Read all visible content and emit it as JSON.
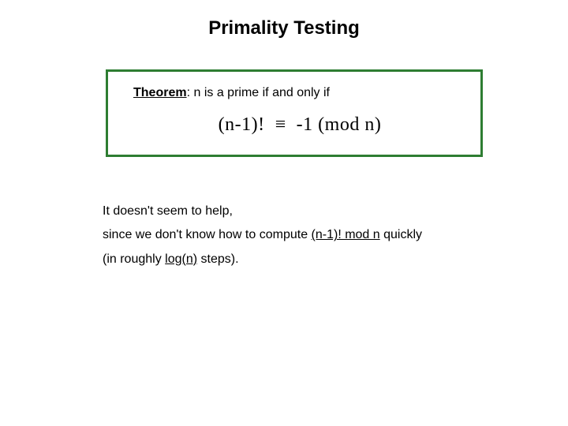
{
  "colors": {
    "text": "#000000",
    "box_border": "#2e7d32",
    "underline": "#000000",
    "background": "#ffffff"
  },
  "title": "Primality Testing",
  "theorem": {
    "label": "Theorem",
    "colon": ":",
    "statement_prefix": " n is a prime if and only if",
    "formula_lhs": "(n-1)!",
    "formula_sym": "≡",
    "formula_rhs": "-1 (mod n)"
  },
  "body": {
    "line1": "It doesn't seem to help,",
    "line2_a": "since we don't know how to compute ",
    "line2_u": "(n-1)! mod n",
    "line2_b": " quickly",
    "line3_a": "(in roughly ",
    "line3_u": "log(n)",
    "line3_b": " steps)."
  }
}
